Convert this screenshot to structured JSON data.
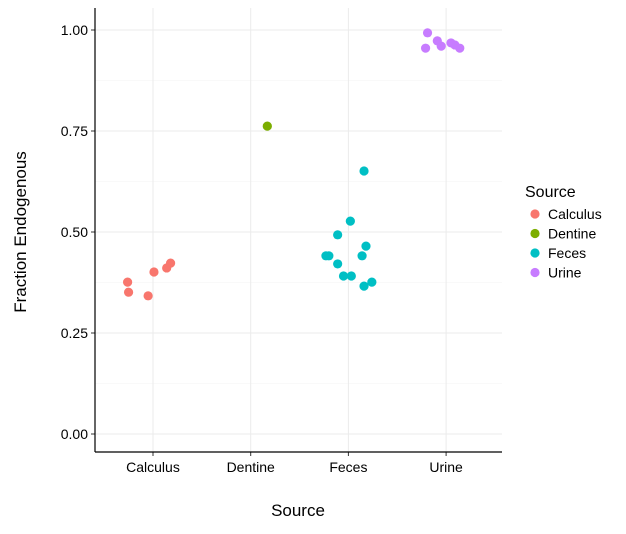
{
  "chart_data": {
    "type": "scatter",
    "title": "",
    "xlabel": "Source",
    "ylabel": "Fraction Endogenous",
    "categories": [
      "Calculus",
      "Dentine",
      "Feces",
      "Urine"
    ],
    "ylim": [
      0,
      1
    ],
    "yticks": [
      "0.00",
      "0.25",
      "0.50",
      "0.75",
      "1.00"
    ],
    "grid": true,
    "legend": {
      "title": "Source",
      "position": "right"
    },
    "colors": {
      "Calculus": "#F8766D",
      "Dentine": "#7CAE00",
      "Feces": "#00BFC4",
      "Urine": "#C77CFF"
    },
    "series": [
      {
        "name": "Calculus",
        "points": [
          [
            0.74,
            0.376
          ],
          [
            0.75,
            0.351
          ],
          [
            0.95,
            0.342
          ],
          [
            1.01,
            0.401
          ],
          [
            1.14,
            0.411
          ],
          [
            1.18,
            0.423
          ]
        ]
      },
      {
        "name": "Dentine",
        "points": [
          [
            2.17,
            0.762
          ]
        ]
      },
      {
        "name": "Feces",
        "points": [
          [
            3.16,
            0.651
          ],
          [
            3.02,
            0.527
          ],
          [
            2.89,
            0.493
          ],
          [
            3.18,
            0.465
          ],
          [
            2.77,
            0.441
          ],
          [
            2.8,
            0.441
          ],
          [
            3.14,
            0.441
          ],
          [
            2.89,
            0.421
          ],
          [
            2.95,
            0.391
          ],
          [
            3.03,
            0.391
          ],
          [
            3.16,
            0.366
          ],
          [
            3.24,
            0.376
          ]
        ]
      },
      {
        "name": "Urine",
        "points": [
          [
            3.81,
            0.993
          ],
          [
            3.79,
            0.955
          ],
          [
            3.91,
            0.973
          ],
          [
            3.95,
            0.96
          ],
          [
            4.05,
            0.968
          ],
          [
            4.09,
            0.963
          ],
          [
            4.14,
            0.955
          ]
        ]
      }
    ]
  }
}
